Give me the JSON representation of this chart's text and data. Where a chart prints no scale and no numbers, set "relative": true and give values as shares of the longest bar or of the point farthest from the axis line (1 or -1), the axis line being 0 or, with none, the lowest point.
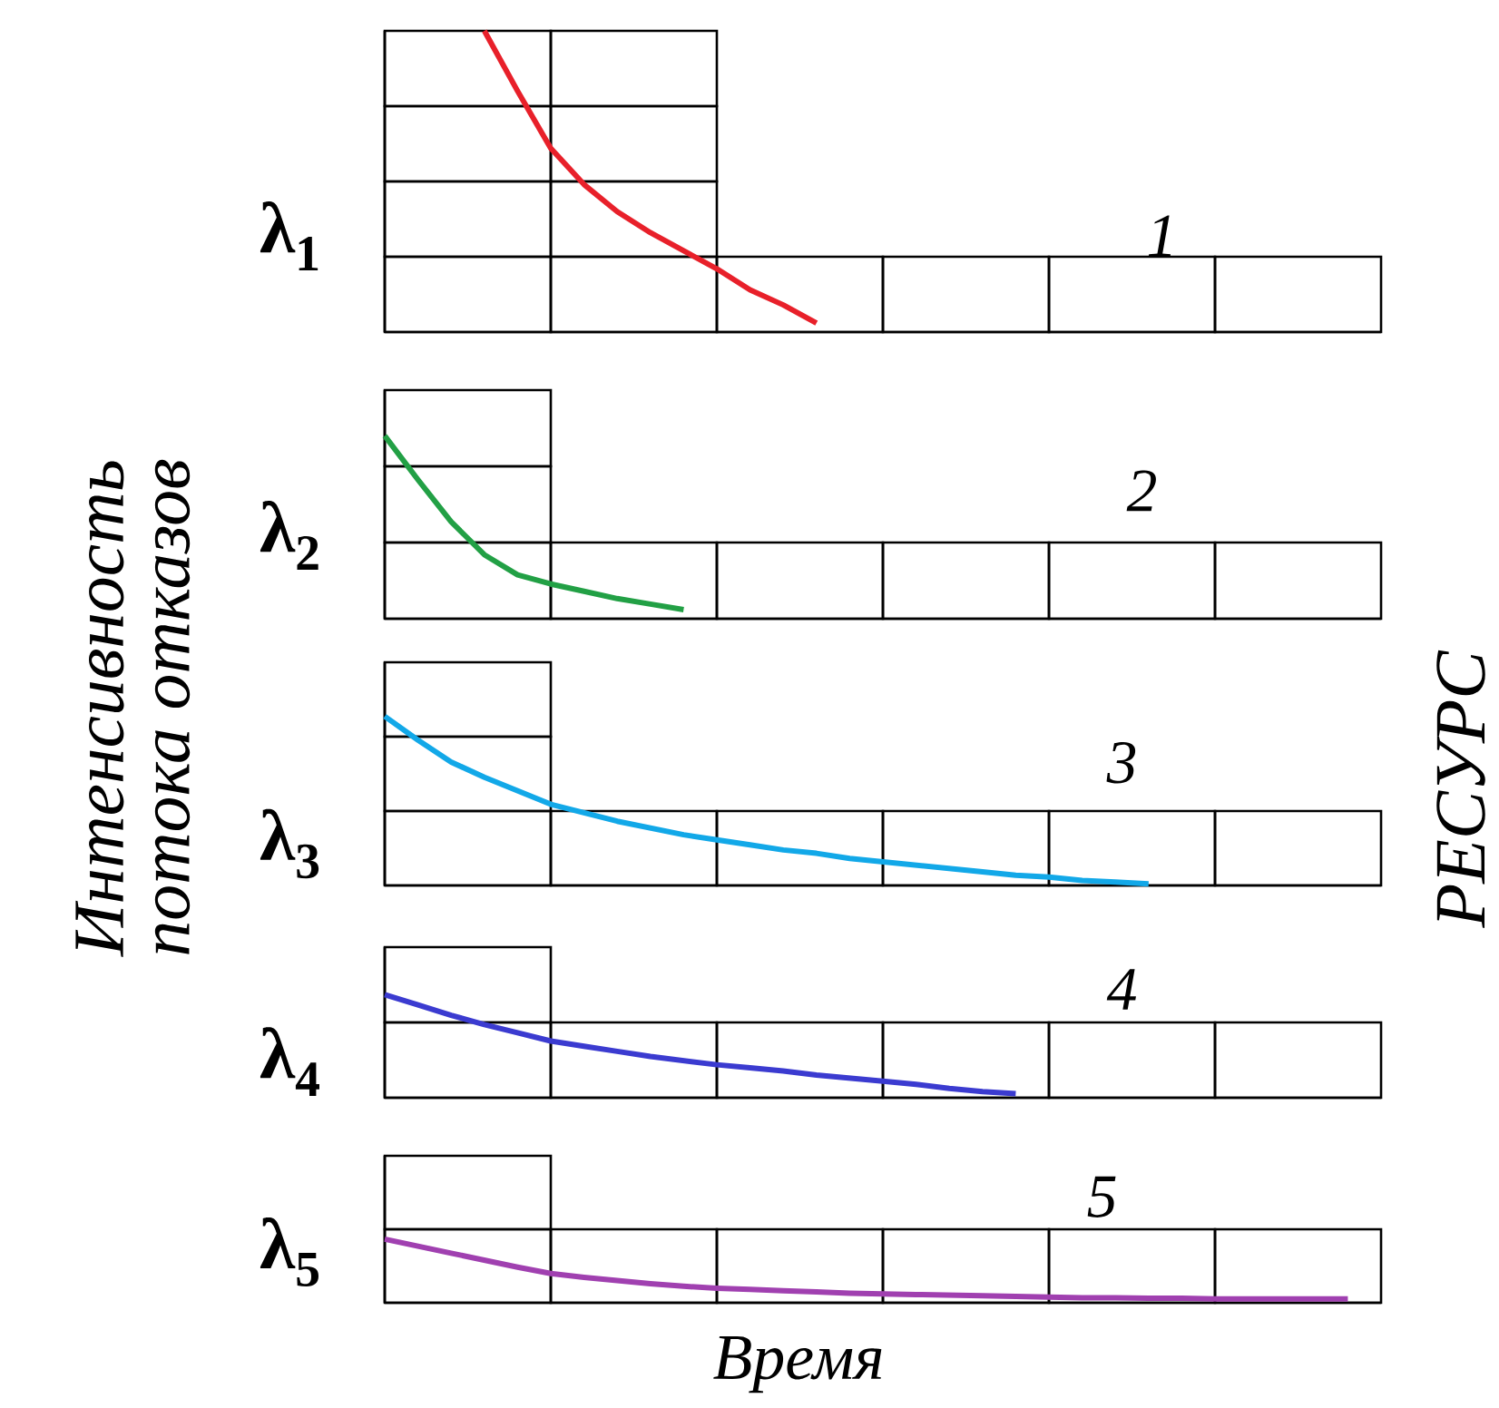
{
  "chart_data": [
    {
      "type": "line",
      "relative": true,
      "title": "1",
      "ylabel": "λ$_{1}$",
      "color": "#e8202a",
      "categories": [
        null,
        null,
        null,
        null,
        null,
        null,
        null,
        null,
        null,
        null,
        null,
        null,
        null,
        null,
        null,
        null,
        null,
        null,
        null,
        null,
        null,
        null,
        null,
        null,
        null,
        null,
        null,
        null,
        null,
        null,
        null
      ],
      "values": [
        null,
        null,
        null,
        1,
        0.8,
        0.61,
        0.49,
        0.4,
        0.33,
        0.27,
        0.21,
        0.14,
        0.09,
        0.03,
        null,
        null,
        null,
        null,
        null,
        null,
        null,
        null,
        null,
        null,
        null,
        null,
        null,
        null,
        null,
        null,
        null
      ],
      "annotations": [
        "Интенсивность",
        "потока отказов",
        "РЕСУРС"
      ]
    },
    {
      "type": "line",
      "relative": true,
      "title": "2",
      "ylabel": "λ$_{2}$",
      "color": "#22a045",
      "categories": [
        null,
        null,
        null,
        null,
        null,
        null,
        null,
        null,
        null,
        null,
        null,
        null,
        null,
        null,
        null,
        null,
        null,
        null,
        null,
        null,
        null,
        null,
        null,
        null,
        null,
        null,
        null,
        null,
        null,
        null,
        null
      ],
      "values": [
        1,
        0.76,
        0.53,
        0.35,
        0.24,
        0.19,
        0.15,
        0.11,
        0.08,
        0.05,
        null,
        null,
        null,
        null,
        null,
        null,
        null,
        null,
        null,
        null,
        null,
        null,
        null,
        null,
        null,
        null,
        null,
        null,
        null,
        null,
        null
      ]
    },
    {
      "type": "line",
      "relative": true,
      "title": "3",
      "ylabel": "λ$_{3}$",
      "color": "#12a8e8",
      "categories": [
        null,
        null,
        null,
        null,
        null,
        null,
        null,
        null,
        null,
        null,
        null,
        null,
        null,
        null,
        null,
        null,
        null,
        null,
        null,
        null,
        null,
        null,
        null,
        null,
        null,
        null,
        null,
        null,
        null,
        null,
        null
      ],
      "values": [
        1,
        0.86,
        0.73,
        0.64,
        0.56,
        0.48,
        0.43,
        0.38,
        0.34,
        0.3,
        0.27,
        0.24,
        0.21,
        0.19,
        0.16,
        0.14,
        0.12,
        0.1,
        0.08,
        0.06,
        0.05,
        0.03,
        0.02,
        0.01,
        null,
        null,
        null,
        null,
        null,
        null,
        null
      ]
    },
    {
      "type": "line",
      "relative": true,
      "title": "4",
      "ylabel": "λ$_{4}$",
      "color": "#3b3bd0",
      "categories": [
        null,
        null,
        null,
        null,
        null,
        null,
        null,
        null,
        null,
        null,
        null,
        null,
        null,
        null,
        null,
        null,
        null,
        null,
        null,
        null,
        null,
        null,
        null,
        null,
        null,
        null,
        null,
        null,
        null,
        null,
        null
      ],
      "values": [
        1,
        0.9,
        0.8,
        0.71,
        0.63,
        0.55,
        0.5,
        0.45,
        0.4,
        0.36,
        0.32,
        0.29,
        0.26,
        0.22,
        0.19,
        0.16,
        0.13,
        0.09,
        0.06,
        0.04,
        null,
        null,
        null,
        null,
        null,
        null,
        null,
        null,
        null,
        null,
        null
      ]
    },
    {
      "type": "line",
      "relative": true,
      "title": "5",
      "ylabel": "λ$_{5}$",
      "color": "#a040b0",
      "categories": [
        null,
        null,
        null,
        null,
        null,
        null,
        null,
        null,
        null,
        null,
        null,
        null,
        null,
        null,
        null,
        null,
        null,
        null,
        null,
        null,
        null,
        null,
        null,
        null,
        null,
        null,
        null,
        null,
        null,
        null,
        null
      ],
      "values": [
        1,
        0.89,
        0.78,
        0.67,
        0.56,
        0.46,
        0.4,
        0.35,
        0.3,
        0.26,
        0.23,
        0.21,
        0.19,
        0.17,
        0.15,
        0.14,
        0.13,
        0.12,
        0.11,
        0.1,
        0.09,
        0.08,
        0.08,
        0.07,
        0.07,
        0.06,
        0.06,
        0.06,
        0.06,
        0.06,
        null
      ],
      "xlabel": "Время"
    }
  ]
}
